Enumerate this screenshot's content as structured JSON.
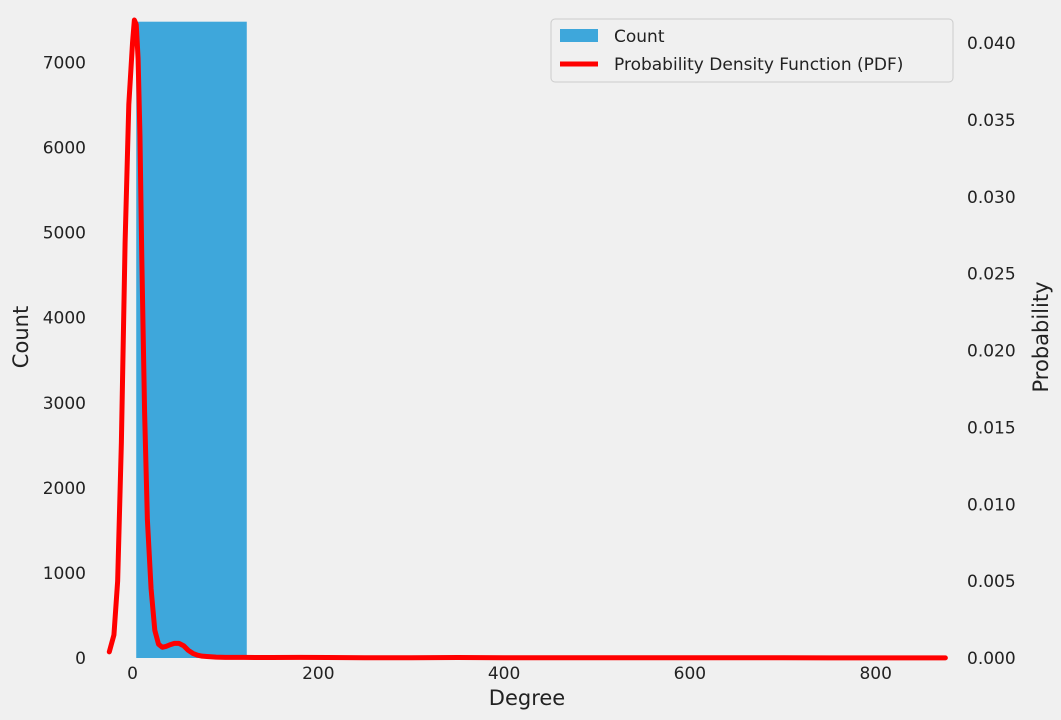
{
  "chart_data": {
    "type": "bar",
    "xlabel": "Degree",
    "ylabel": "Count",
    "y2label": "Probability",
    "xlim": [
      -35,
      880
    ],
    "ylim": [
      0,
      7500
    ],
    "y2lim": [
      0,
      0.0415
    ],
    "xticks": [
      0,
      200,
      400,
      600,
      800
    ],
    "yticks": [
      0,
      1000,
      2000,
      3000,
      4000,
      5000,
      6000,
      7000
    ],
    "y2ticks": [
      "0.000",
      "0.005",
      "0.010",
      "0.015",
      "0.020",
      "0.025",
      "0.030",
      "0.035",
      "0.040"
    ],
    "grid": false,
    "legend_position": "top-right",
    "series": [
      {
        "name": "Count",
        "kind": "histogram",
        "axis": "left",
        "color": "#3ea7db",
        "bins": [
          {
            "x0": 4,
            "x1": 123,
            "count": 7480
          },
          {
            "x0": 123,
            "x1": 242,
            "count": 12
          },
          {
            "x0": 242,
            "x1": 361,
            "count": 4
          },
          {
            "x0": 361,
            "x1": 480,
            "count": 2
          },
          {
            "x0": 480,
            "x1": 599,
            "count": 1
          },
          {
            "x0": 599,
            "x1": 718,
            "count": 1
          },
          {
            "x0": 718,
            "x1": 837,
            "count": 0
          }
        ]
      },
      {
        "name": "Probability Density Function (PDF)",
        "kind": "line",
        "axis": "right",
        "color": "#ff0000",
        "x": [
          -25,
          -20,
          -16,
          -12,
          -8,
          -4,
          0,
          2,
          4,
          6,
          8,
          10,
          13,
          16,
          20,
          24,
          28,
          32,
          36,
          40,
          45,
          50,
          55,
          60,
          65,
          70,
          75,
          80,
          90,
          100,
          120,
          150,
          180,
          210,
          250,
          300,
          350,
          400,
          450,
          500,
          550,
          600,
          650,
          700,
          750,
          800,
          875
        ],
        "y": [
          0.0004,
          0.0015,
          0.005,
          0.014,
          0.027,
          0.036,
          0.04,
          0.0415,
          0.0412,
          0.039,
          0.034,
          0.026,
          0.016,
          0.009,
          0.0045,
          0.0018,
          0.0009,
          0.0007,
          0.00075,
          0.00085,
          0.00095,
          0.00095,
          0.0008,
          0.0005,
          0.0003,
          0.00018,
          0.00012,
          0.0001,
          6e-05,
          4e-05,
          4e-05,
          3e-05,
          4e-05,
          3e-05,
          2e-05,
          2e-05,
          3e-05,
          2e-05,
          2e-05,
          2e-05,
          2e-05,
          2e-05,
          2e-05,
          2e-05,
          1e-05,
          1e-05,
          1e-05
        ]
      }
    ]
  }
}
